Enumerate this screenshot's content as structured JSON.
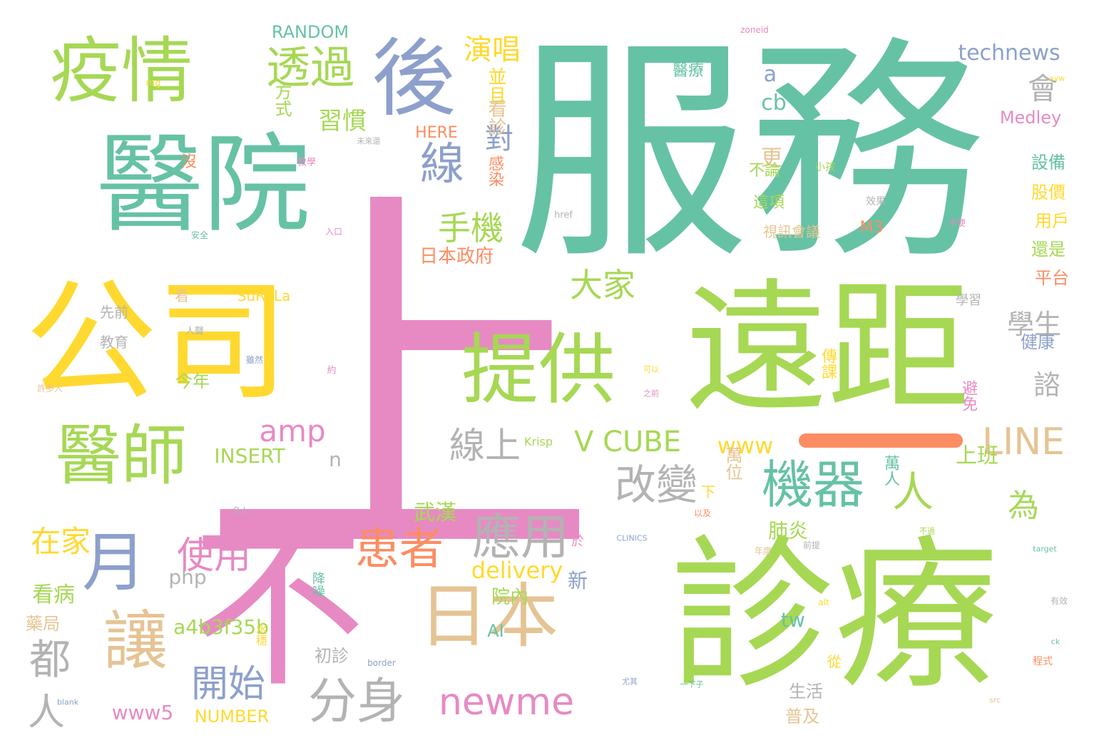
{
  "palette": {
    "green": "#a6d854",
    "teal": "#66c2a5",
    "pink": "#e78ac3",
    "yellow": "#ffd92f",
    "tan": "#e5c494",
    "blue": "#8da0cb",
    "orange": "#fc8d62",
    "gray": "#b3b3b3"
  },
  "words": [
    {
      "text": "服務",
      "c": "teal"
    },
    {
      "text": "上",
      "c": "pink"
    },
    {
      "text": "遠距",
      "c": "green"
    },
    {
      "text": "診療",
      "c": "green"
    },
    {
      "text": "醫院",
      "c": "teal"
    },
    {
      "text": "不",
      "c": "pink"
    },
    {
      "text": "公司",
      "c": "yellow"
    },
    {
      "text": "疫情",
      "c": "green"
    },
    {
      "text": "提供",
      "c": "green"
    },
    {
      "text": "後",
      "c": "blue"
    },
    {
      "text": "醫師",
      "c": "green"
    },
    {
      "text": "日本",
      "c": "tan"
    },
    {
      "text": "讓",
      "c": "tan"
    },
    {
      "text": "月",
      "c": "blue"
    },
    {
      "text": "應用",
      "c": "gray"
    },
    {
      "text": "機器",
      "c": "teal"
    },
    {
      "text": "分身",
      "c": "gray"
    },
    {
      "text": "newme",
      "c": "pink"
    },
    {
      "text": "透過",
      "c": "green"
    },
    {
      "text": "線",
      "c": "blue"
    },
    {
      "text": "患者",
      "c": "orange"
    },
    {
      "text": "改變",
      "c": "gray"
    },
    {
      "text": "線上",
      "c": "gray"
    },
    {
      "text": "LINE",
      "c": "tan"
    },
    {
      "text": "大家",
      "c": "green"
    },
    {
      "text": "手機",
      "c": "green"
    },
    {
      "text": "都",
      "c": "gray"
    },
    {
      "text": "人",
      "c": "gray"
    },
    {
      "text": "人",
      "c": "green"
    },
    {
      "text": "開始",
      "c": "blue"
    },
    {
      "text": "使用",
      "c": "pink"
    },
    {
      "text": "在家",
      "c": "yellow"
    },
    {
      "text": "amp",
      "c": "pink"
    },
    {
      "text": "V CUBE",
      "c": "green"
    },
    {
      "text": "演唱",
      "c": "yellow"
    },
    {
      "text": "technews",
      "c": "blue"
    },
    {
      "text": "對",
      "c": "blue"
    },
    {
      "text": "會",
      "c": "gray"
    },
    {
      "text": "為",
      "c": "green"
    },
    {
      "text": "學生",
      "c": "gray"
    },
    {
      "text": "諮",
      "c": "gray"
    },
    {
      "text": "習慣",
      "c": "green"
    },
    {
      "text": "delivery",
      "c": "yellow"
    },
    {
      "text": "www",
      "c": "yellow"
    },
    {
      "text": "a4b3f35b",
      "c": "green"
    },
    {
      "text": "INSERT",
      "c": "green"
    },
    {
      "text": "RANDOM",
      "c": "teal"
    },
    {
      "text": "NUMBER",
      "c": "yellow"
    },
    {
      "text": "www5",
      "c": "pink"
    },
    {
      "text": "php",
      "c": "gray"
    },
    {
      "text": "上班",
      "c": "green"
    },
    {
      "text": "武漢",
      "c": "green"
    },
    {
      "text": "看病",
      "c": "green"
    },
    {
      "text": "肺炎",
      "c": "green"
    },
    {
      "text": "cb",
      "c": "teal"
    },
    {
      "text": "a",
      "c": "blue"
    },
    {
      "text": "n",
      "c": "gray"
    },
    {
      "text": "新",
      "c": "blue"
    },
    {
      "text": "院內",
      "c": "green"
    },
    {
      "text": "tw",
      "c": "teal"
    },
    {
      "text": "AI",
      "c": "teal"
    },
    {
      "text": "Medley",
      "c": "pink"
    },
    {
      "text": "更",
      "c": "tan"
    },
    {
      "text": "日本政府",
      "c": "orange"
    },
    {
      "text": "並且",
      "c": "yellow"
    },
    {
      "text": "看診",
      "c": "tan"
    },
    {
      "text": "HERE",
      "c": "orange"
    },
    {
      "text": "方式",
      "c": "green"
    },
    {
      "text": "醫療",
      "c": "teal"
    },
    {
      "text": "設備",
      "c": "teal"
    },
    {
      "text": "股價",
      "c": "yellow"
    },
    {
      "text": "用戶",
      "c": "yellow"
    },
    {
      "text": "M3",
      "c": "orange"
    },
    {
      "text": "還是",
      "c": "green"
    },
    {
      "text": "平台",
      "c": "orange"
    },
    {
      "text": "健康",
      "c": "blue"
    },
    {
      "text": "今年",
      "c": "green"
    },
    {
      "text": "藥局",
      "c": "tan"
    },
    {
      "text": "初診",
      "c": "gray"
    },
    {
      "text": "生活",
      "c": "gray"
    },
    {
      "text": "普及",
      "c": "tan"
    },
    {
      "text": "萬人",
      "c": "teal"
    },
    {
      "text": "萬位",
      "c": "tan"
    },
    {
      "text": "不論",
      "c": "green"
    },
    {
      "text": "這項",
      "c": "green"
    },
    {
      "text": "感染",
      "c": "orange"
    },
    {
      "text": "避免",
      "c": "pink"
    },
    {
      "text": "傳課",
      "c": "yellow"
    },
    {
      "text": "教育",
      "c": "gray"
    },
    {
      "text": "先前",
      "c": "gray"
    },
    {
      "text": "看",
      "c": "tan"
    },
    {
      "text": "沒",
      "c": "orange"
    },
    {
      "text": "SuRaLa",
      "c": "yellow"
    },
    {
      "text": "視訊會議",
      "c": "tan"
    },
    {
      "text": "學習",
      "c": "gray"
    },
    {
      "text": "Krisp",
      "c": "green"
    },
    {
      "text": "於",
      "c": "pink"
    },
    {
      "text": "下",
      "c": "yellow"
    },
    {
      "text": "從",
      "c": "yellow"
    },
    {
      "text": "水穩",
      "c": "yellow"
    },
    {
      "text": "降噪",
      "c": "teal"
    },
    {
      "text": "zoneid",
      "c": "pink"
    },
    {
      "text": "href",
      "c": "gray"
    },
    {
      "text": "CLINICS",
      "c": "blue"
    },
    {
      "text": "target",
      "c": "teal"
    },
    {
      "text": "border",
      "c": "blue"
    },
    {
      "text": "blank",
      "c": "blue"
    },
    {
      "text": "alt",
      "c": "yellow"
    },
    {
      "text": "ck",
      "c": "teal"
    },
    {
      "text": "src",
      "c": "tan"
    },
    {
      "text": "avw",
      "c": "yellow"
    },
    {
      "text": "mg",
      "c": "yellow"
    },
    {
      "text": "小孩",
      "c": "green"
    },
    {
      "text": "效果",
      "c": "gray"
    },
    {
      "text": "程式",
      "c": "orange"
    },
    {
      "text": "人聲",
      "c": "gray"
    },
    {
      "text": "許多人",
      "c": "tan"
    },
    {
      "text": "一下子",
      "c": "teal"
    },
    {
      "text": "未來還",
      "c": "gray"
    },
    {
      "text": "教學",
      "c": "pink"
    },
    {
      "text": "以及",
      "c": "orange"
    },
    {
      "text": "不便",
      "c": "pink"
    },
    {
      "text": "約",
      "c": "pink"
    },
    {
      "text": "入口",
      "c": "pink"
    },
    {
      "text": "安全",
      "c": "teal"
    },
    {
      "text": "前提",
      "c": "gray"
    },
    {
      "text": "年度",
      "c": "tan"
    },
    {
      "text": "有效",
      "c": "gray"
    },
    {
      "text": "不過",
      "c": "green"
    },
    {
      "text": "之前",
      "c": "pink"
    },
    {
      "text": "可以",
      "c": "yellow"
    },
    {
      "text": "尤其",
      "c": "blue"
    },
    {
      "text": "雖然",
      "c": "blue"
    },
    {
      "text": "名人",
      "c": "gray"
    }
  ]
}
